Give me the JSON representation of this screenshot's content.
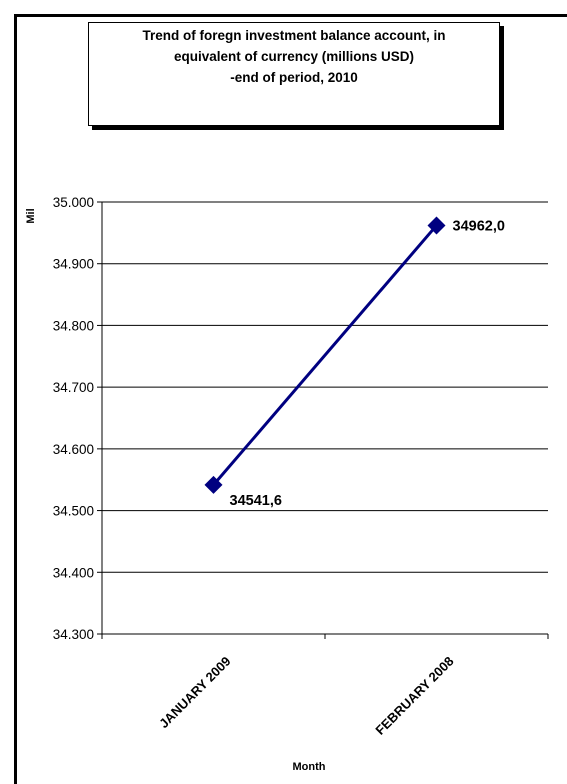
{
  "chart_data": {
    "type": "line",
    "title_lines": [
      "Trend of foregn investment balance account, in",
      "equivalent of currency (millions USD)",
      "-end of period, 2010"
    ],
    "xlabel": "Month",
    "ylabel": "Mil",
    "categories": [
      "JANUARY 2009",
      "FEBRUARY 2008"
    ],
    "series": [
      {
        "values": [
          34541.6,
          34962.0
        ],
        "data_labels": [
          "34541,6",
          "34962,0"
        ]
      }
    ],
    "ylim": [
      34300,
      35000
    ],
    "y_ticks": [
      "34.300",
      "34.400",
      "34.500",
      "34.600",
      "34.700",
      "34.800",
      "34.900",
      "35.000"
    ],
    "grid": true,
    "legend": "none",
    "line_color": "#000080"
  }
}
